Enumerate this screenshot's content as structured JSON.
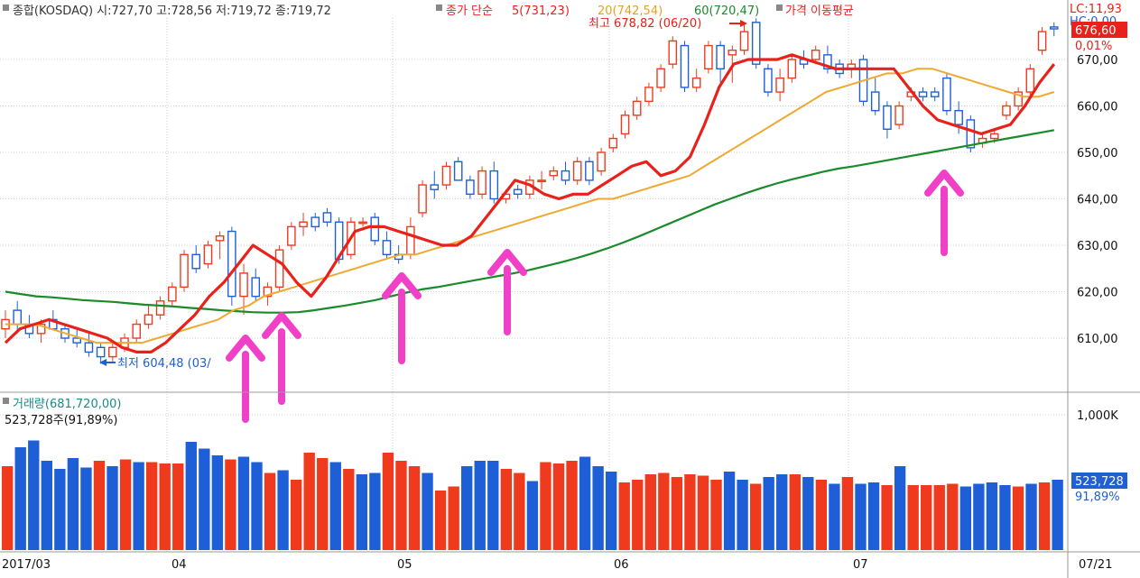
{
  "header": {
    "icon": "square-bullet-icon",
    "ohlc_summary": "종합(KOSDAQ) 시:727,70 고:728,56 저:719,72 종:719,72",
    "ma_legend_label": "종가 단순",
    "ma5": "5(731,23)",
    "ma20": "20(742,54)",
    "ma60": "60(720,47)",
    "ma_title": "가격 이동평균",
    "lc_value": "LC:11,93",
    "hc_value": "HC:0,00"
  },
  "price_annotations": {
    "high_label": "최고 678,82 (06/20)",
    "low_label": "최저 604,48 (03/",
    "current_price_badge": "676,60",
    "current_change": "0,01%"
  },
  "volume_panel": {
    "title": "거래량(681,720,00)",
    "current_volume": "523,728주(91,89%)",
    "volume_badge": "523,728",
    "volume_pct": "91,89%"
  },
  "colors": {
    "up": "#f03a1e",
    "down": "#1e5fd8",
    "ma5": "#e8211a",
    "ma20": "#f0a830",
    "ma60": "#1a8a2a",
    "arrow": "#f040c8",
    "badge": "#2060d0"
  },
  "chart_data": [
    {
      "type": "candlestick",
      "title": "",
      "xlabel": "",
      "ylabel": "",
      "ylim": [
        600,
        680
      ],
      "grid": true,
      "y_ticks": [
        "670,00",
        "660,00",
        "650,00",
        "640,00",
        "630,00",
        "620,00",
        "610,00"
      ],
      "y_tick_values": [
        670,
        660,
        650,
        640,
        630,
        620,
        610
      ],
      "x_ticks": [
        "2017/03",
        "04",
        "05",
        "06",
        "07",
        "07/21"
      ],
      "x_tick_index": [
        0,
        16,
        37,
        58,
        79,
        97
      ],
      "series_ma": {
        "ma5": [
          609,
          612,
          613,
          614,
          613,
          612,
          611,
          610,
          608,
          607,
          607,
          609,
          612,
          615,
          619,
          622,
          626,
          630,
          628,
          626,
          622,
          619,
          623,
          628,
          633,
          634,
          634,
          633,
          632,
          631,
          630,
          630,
          632,
          636,
          640,
          644,
          643,
          641,
          640,
          641,
          641,
          643,
          645,
          647,
          648,
          645,
          646,
          649,
          656,
          664,
          669,
          670,
          670,
          670,
          671,
          670,
          669,
          668,
          668,
          668,
          668,
          668,
          664,
          660,
          657,
          656,
          655,
          654,
          655,
          656,
          660,
          665,
          669
        ],
        "ma20": [
          613,
          613,
          613,
          612,
          611,
          610,
          609,
          609,
          609,
          609,
          610,
          611,
          612,
          613,
          614,
          616,
          617,
          619,
          620,
          621,
          622,
          623,
          624,
          625,
          626,
          627,
          628,
          628,
          629,
          630,
          631,
          632,
          633,
          634,
          635,
          636,
          637,
          638,
          639,
          640,
          640,
          641,
          642,
          643,
          644,
          645,
          647,
          649,
          651,
          653,
          655,
          657,
          659,
          661,
          663,
          664,
          665,
          666,
          667,
          667,
          668,
          668,
          667,
          666,
          665,
          664,
          663,
          662,
          662,
          663
        ],
        "ma60": [
          620,
          619.5,
          619,
          618.8,
          618.5,
          618.2,
          618,
          617.8,
          617.5,
          617.2,
          617,
          616.8,
          616.5,
          616.3,
          616,
          615.8,
          615.6,
          615.5,
          615.5,
          615.6,
          616,
          616.5,
          617,
          617.6,
          618.2,
          619,
          619.8,
          620.5,
          621,
          621.6,
          622.2,
          622.8,
          623.4,
          624,
          624.7,
          625.5,
          626.3,
          627.2,
          628.2,
          629.3,
          630.5,
          631.8,
          633.2,
          634.6,
          636,
          637.4,
          638.8,
          640,
          641.2,
          642.3,
          643.3,
          644.2,
          645,
          645.8,
          646.5,
          647,
          647.6,
          648.2,
          648.8,
          649.4,
          650,
          650.6,
          651.2,
          651.8,
          652.4,
          653,
          653.6,
          654.2,
          654.8
        ]
      },
      "candles": [
        {
          "o": 612,
          "h": 616,
          "l": 610,
          "c": 614
        },
        {
          "o": 616,
          "h": 618,
          "l": 611,
          "c": 613
        },
        {
          "o": 613,
          "h": 615,
          "l": 610,
          "c": 611
        },
        {
          "o": 611,
          "h": 614,
          "l": 609,
          "c": 613
        },
        {
          "o": 614,
          "h": 616,
          "l": 612,
          "c": 612
        },
        {
          "o": 612,
          "h": 613,
          "l": 609,
          "c": 610
        },
        {
          "o": 610,
          "h": 612,
          "l": 608,
          "c": 609
        },
        {
          "o": 609,
          "h": 611,
          "l": 606,
          "c": 607
        },
        {
          "o": 608,
          "h": 609,
          "l": 604.48,
          "c": 606
        },
        {
          "o": 606,
          "h": 609,
          "l": 605,
          "c": 608
        },
        {
          "o": 608,
          "h": 611,
          "l": 607,
          "c": 610
        },
        {
          "o": 610,
          "h": 614,
          "l": 609,
          "c": 613
        },
        {
          "o": 613,
          "h": 617,
          "l": 612,
          "c": 615
        },
        {
          "o": 615,
          "h": 619,
          "l": 614,
          "c": 618
        },
        {
          "o": 618,
          "h": 622,
          "l": 617,
          "c": 621
        },
        {
          "o": 621,
          "h": 629,
          "l": 620,
          "c": 628
        },
        {
          "o": 628,
          "h": 630,
          "l": 624,
          "c": 625
        },
        {
          "o": 626,
          "h": 631,
          "l": 625,
          "c": 630
        },
        {
          "o": 631,
          "h": 633,
          "l": 627,
          "c": 632
        },
        {
          "o": 633,
          "h": 634,
          "l": 617,
          "c": 619
        },
        {
          "o": 619,
          "h": 626,
          "l": 615,
          "c": 624
        },
        {
          "o": 623,
          "h": 625,
          "l": 618,
          "c": 619
        },
        {
          "o": 619,
          "h": 622,
          "l": 617,
          "c": 621
        },
        {
          "o": 621,
          "h": 630,
          "l": 620,
          "c": 629
        },
        {
          "o": 630,
          "h": 635,
          "l": 629,
          "c": 634
        },
        {
          "o": 634,
          "h": 637,
          "l": 632,
          "c": 635
        },
        {
          "o": 636,
          "h": 637,
          "l": 633,
          "c": 634
        },
        {
          "o": 637,
          "h": 638,
          "l": 634,
          "c": 635
        },
        {
          "o": 635,
          "h": 636,
          "l": 626,
          "c": 627
        },
        {
          "o": 628,
          "h": 636,
          "l": 627,
          "c": 635
        },
        {
          "o": 635,
          "h": 636,
          "l": 634,
          "c": 635
        },
        {
          "o": 636,
          "h": 637,
          "l": 630,
          "c": 631
        },
        {
          "o": 631,
          "h": 633,
          "l": 627,
          "c": 628
        },
        {
          "o": 628,
          "h": 630,
          "l": 626,
          "c": 627
        },
        {
          "o": 628,
          "h": 636,
          "l": 627,
          "c": 634
        },
        {
          "o": 637,
          "h": 644,
          "l": 636,
          "c": 643
        },
        {
          "o": 643,
          "h": 646,
          "l": 640,
          "c": 642
        },
        {
          "o": 643,
          "h": 648,
          "l": 642,
          "c": 647
        },
        {
          "o": 648,
          "h": 649,
          "l": 644,
          "c": 644
        },
        {
          "o": 644,
          "h": 645,
          "l": 640,
          "c": 641
        },
        {
          "o": 641,
          "h": 647,
          "l": 640,
          "c": 646
        },
        {
          "o": 646,
          "h": 648,
          "l": 639,
          "c": 640
        },
        {
          "o": 640,
          "h": 642,
          "l": 639,
          "c": 641
        },
        {
          "o": 642,
          "h": 643,
          "l": 640,
          "c": 641
        },
        {
          "o": 641,
          "h": 645,
          "l": 640,
          "c": 644
        },
        {
          "o": 644,
          "h": 646,
          "l": 642,
          "c": 644
        },
        {
          "o": 645,
          "h": 647,
          "l": 644,
          "c": 646
        },
        {
          "o": 646,
          "h": 648,
          "l": 643,
          "c": 644
        },
        {
          "o": 644,
          "h": 649,
          "l": 643,
          "c": 648
        },
        {
          "o": 648,
          "h": 649,
          "l": 643,
          "c": 644
        },
        {
          "o": 646,
          "h": 651,
          "l": 645,
          "c": 650
        },
        {
          "o": 651,
          "h": 654,
          "l": 650,
          "c": 653
        },
        {
          "o": 654,
          "h": 659,
          "l": 653,
          "c": 658
        },
        {
          "o": 658,
          "h": 662,
          "l": 657,
          "c": 661
        },
        {
          "o": 661,
          "h": 665,
          "l": 660,
          "c": 664
        },
        {
          "o": 664,
          "h": 669,
          "l": 663,
          "c": 668
        },
        {
          "o": 669,
          "h": 675,
          "l": 668,
          "c": 674
        },
        {
          "o": 673,
          "h": 674,
          "l": 663,
          "c": 664
        },
        {
          "o": 664,
          "h": 668,
          "l": 663,
          "c": 666
        },
        {
          "o": 668,
          "h": 674,
          "l": 667,
          "c": 673
        },
        {
          "o": 673,
          "h": 674,
          "l": 665,
          "c": 668
        },
        {
          "o": 671,
          "h": 673,
          "l": 665,
          "c": 672
        },
        {
          "o": 672,
          "h": 678,
          "l": 671,
          "c": 676
        },
        {
          "o": 678,
          "h": 678.82,
          "l": 668,
          "c": 669
        },
        {
          "o": 668,
          "h": 669,
          "l": 662,
          "c": 663
        },
        {
          "o": 663,
          "h": 668,
          "l": 661,
          "c": 666
        },
        {
          "o": 666,
          "h": 671,
          "l": 665,
          "c": 670
        },
        {
          "o": 670,
          "h": 672,
          "l": 668,
          "c": 669
        },
        {
          "o": 670,
          "h": 673,
          "l": 669,
          "c": 672
        },
        {
          "o": 671,
          "h": 673,
          "l": 667,
          "c": 668
        },
        {
          "o": 669,
          "h": 670,
          "l": 666,
          "c": 667
        },
        {
          "o": 668,
          "h": 670,
          "l": 666,
          "c": 669
        },
        {
          "o": 670,
          "h": 671,
          "l": 660,
          "c": 661
        }
      ],
      "candles_tail": [
        {
          "o": 663,
          "h": 666,
          "l": 658,
          "c": 659
        },
        {
          "o": 660,
          "h": 661,
          "l": 653,
          "c": 655
        },
        {
          "o": 656,
          "h": 661,
          "l": 655,
          "c": 660
        },
        {
          "o": 662,
          "h": 664,
          "l": 661,
          "c": 663
        },
        {
          "o": 663,
          "h": 664,
          "l": 661,
          "c": 662
        },
        {
          "o": 663,
          "h": 664,
          "l": 661,
          "c": 662
        },
        {
          "o": 666,
          "h": 667,
          "l": 658,
          "c": 659
        },
        {
          "o": 659,
          "h": 661,
          "l": 654,
          "c": 656
        },
        {
          "o": 657,
          "h": 658,
          "l": 650,
          "c": 651
        },
        {
          "o": 652,
          "h": 654,
          "l": 651,
          "c": 653
        },
        {
          "o": 653,
          "h": 655,
          "l": 652,
          "c": 654
        },
        {
          "o": 658,
          "h": 661,
          "l": 657,
          "c": 660
        },
        {
          "o": 660,
          "h": 664,
          "l": 659,
          "c": 663
        },
        {
          "o": 663,
          "h": 669,
          "l": 662,
          "c": 668
        },
        {
          "o": 672,
          "h": 677,
          "l": 671,
          "c": 676
        },
        {
          "o": 677,
          "h": 678,
          "l": 675,
          "c": 676.6
        }
      ]
    },
    {
      "type": "bar",
      "title": "",
      "ylim": [
        0,
        1100
      ],
      "y_ticks": [
        "1,000K"
      ],
      "y_tick_values": [
        1000
      ],
      "values": [
        620,
        760,
        810,
        660,
        600,
        680,
        610,
        660,
        620,
        670,
        650,
        650,
        640,
        640,
        800,
        750,
        700,
        670,
        690,
        650,
        570,
        590,
        520,
        720,
        680,
        650,
        600,
        560,
        570,
        720,
        660,
        620,
        570,
        440,
        470,
        620,
        660,
        660,
        600,
        570,
        510,
        650,
        640,
        660,
        690,
        620,
        580,
        500,
        520,
        560,
        570,
        540,
        560,
        550,
        520,
        580,
        520,
        490,
        540,
        560,
        560,
        540,
        520,
        490,
        540,
        490,
        500,
        480,
        620,
        480,
        480,
        480,
        490,
        470,
        490,
        500,
        480,
        470,
        490,
        500,
        520
      ],
      "up": [
        1,
        0,
        0,
        0,
        0,
        0,
        0,
        1,
        0,
        1,
        0,
        1,
        1,
        1,
        0,
        0,
        0,
        1,
        0,
        0,
        1,
        0,
        1,
        1,
        1,
        0,
        1,
        0,
        0,
        1,
        1,
        1,
        0,
        1,
        1,
        0,
        0,
        0,
        1,
        1,
        0,
        1,
        1,
        1,
        0,
        0,
        0,
        1,
        1,
        1,
        1,
        1,
        1,
        1,
        1,
        0,
        0,
        1,
        0,
        0,
        1,
        0,
        1,
        0,
        1,
        0,
        0,
        1,
        0,
        1,
        1,
        1,
        1,
        0,
        0,
        0,
        0,
        1,
        0,
        1,
        0
      ]
    }
  ]
}
